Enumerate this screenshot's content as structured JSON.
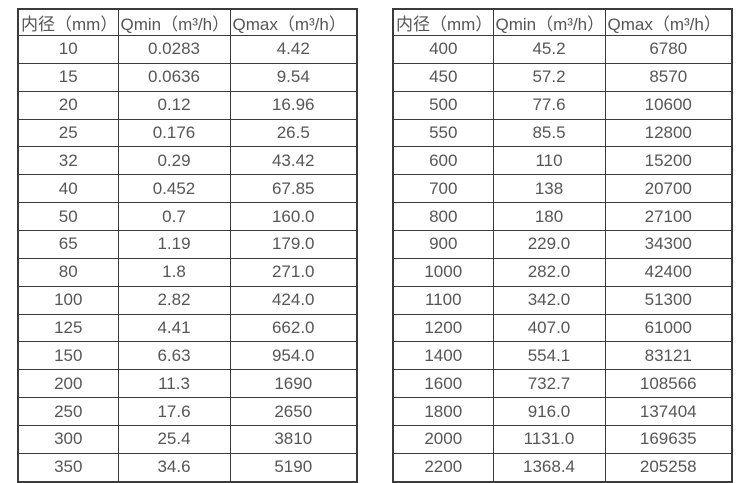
{
  "colors": {
    "background": "#ffffff",
    "border": "#3b3b3b",
    "text": "#565656"
  },
  "chart_data": [
    {
      "type": "table",
      "name": "flow-rate-spec-small-diameters",
      "columns": [
        "内径（mm）",
        "Qmin（m³/h）",
        "Qmax（m³/h）"
      ],
      "rows": [
        [
          "10",
          "0.0283",
          "4.42"
        ],
        [
          "15",
          "0.0636",
          "9.54"
        ],
        [
          "20",
          "0.12",
          "16.96"
        ],
        [
          "25",
          "0.176",
          "26.5"
        ],
        [
          "32",
          "0.29",
          "43.42"
        ],
        [
          "40",
          "0.452",
          "67.85"
        ],
        [
          "50",
          "0.7",
          "160.0"
        ],
        [
          "65",
          "1.19",
          "179.0"
        ],
        [
          "80",
          "1.8",
          "271.0"
        ],
        [
          "100",
          "2.82",
          "424.0"
        ],
        [
          "125",
          "4.41",
          "662.0"
        ],
        [
          "150",
          "6.63",
          "954.0"
        ],
        [
          "200",
          "11.3",
          "1690"
        ],
        [
          "250",
          "17.6",
          "2650"
        ],
        [
          "300",
          "25.4",
          "3810"
        ],
        [
          "350",
          "34.6",
          "5190"
        ]
      ]
    },
    {
      "type": "table",
      "name": "flow-rate-spec-large-diameters",
      "columns": [
        "内径（mm）",
        "Qmin（m³/h）",
        "Qmax（m³/h）"
      ],
      "rows": [
        [
          "400",
          "45.2",
          "6780"
        ],
        [
          "450",
          "57.2",
          "8570"
        ],
        [
          "500",
          "77.6",
          "10600"
        ],
        [
          "550",
          "85.5",
          "12800"
        ],
        [
          "600",
          "110",
          "15200"
        ],
        [
          "700",
          "138",
          "20700"
        ],
        [
          "800",
          "180",
          "27100"
        ],
        [
          "900",
          "229.0",
          "34300"
        ],
        [
          "1000",
          "282.0",
          "42400"
        ],
        [
          "1100",
          "342.0",
          "51300"
        ],
        [
          "1200",
          "407.0",
          "61000"
        ],
        [
          "1400",
          "554.1",
          "83121"
        ],
        [
          "1600",
          "732.7",
          "108566"
        ],
        [
          "1800",
          "916.0",
          "137404"
        ],
        [
          "2000",
          "1131.0",
          "169635"
        ],
        [
          "2200",
          "1368.4",
          "205258"
        ]
      ]
    }
  ]
}
